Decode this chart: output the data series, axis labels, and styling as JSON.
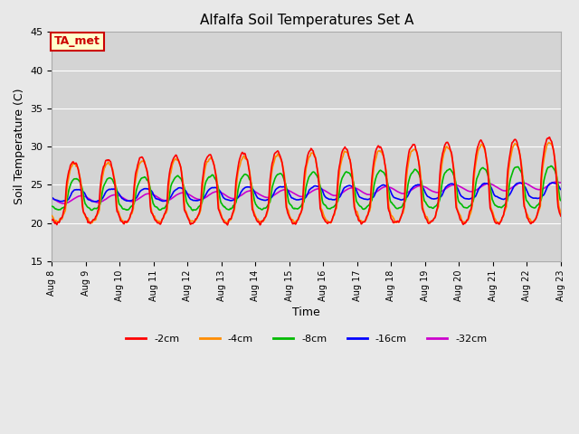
{
  "title": "Alfalfa Soil Temperatures Set A",
  "xlabel": "Time",
  "ylabel": "Soil Temperature (C)",
  "ylim": [
    15,
    45
  ],
  "background_color": "#e8e8e8",
  "plot_bg_color": "#d4d4d4",
  "series": {
    "-2cm": {
      "color": "#ff0000",
      "linewidth": 1.2
    },
    "-4cm": {
      "color": "#ff8c00",
      "linewidth": 1.2
    },
    "-8cm": {
      "color": "#00bb00",
      "linewidth": 1.2
    },
    "-16cm": {
      "color": "#0000ff",
      "linewidth": 1.2
    },
    "-32cm": {
      "color": "#cc00cc",
      "linewidth": 1.2
    }
  },
  "legend_labels": [
    "-2cm",
    "-4cm",
    "-8cm",
    "-16cm",
    "-32cm"
  ],
  "legend_colors": [
    "#ff0000",
    "#ff8c00",
    "#00bb00",
    "#0000ff",
    "#cc00cc"
  ],
  "annotation_text": "TA_met",
  "annotation_color": "#cc0000",
  "annotation_bg": "#ffffcc",
  "xtick_labels": [
    "Aug 8",
    "Aug 9",
    "Aug 10",
    "Aug 11",
    "Aug 12",
    "Aug 13",
    "Aug 14",
    "Aug 15",
    "Aug 16",
    "Aug 17",
    "Aug 18",
    "Aug 19",
    "Aug 20",
    "Aug 21",
    "Aug 22",
    "Aug 23"
  ],
  "ytick_values": [
    15,
    20,
    25,
    30,
    35,
    40,
    45
  ],
  "num_days": 15,
  "pts_per_day": 48
}
